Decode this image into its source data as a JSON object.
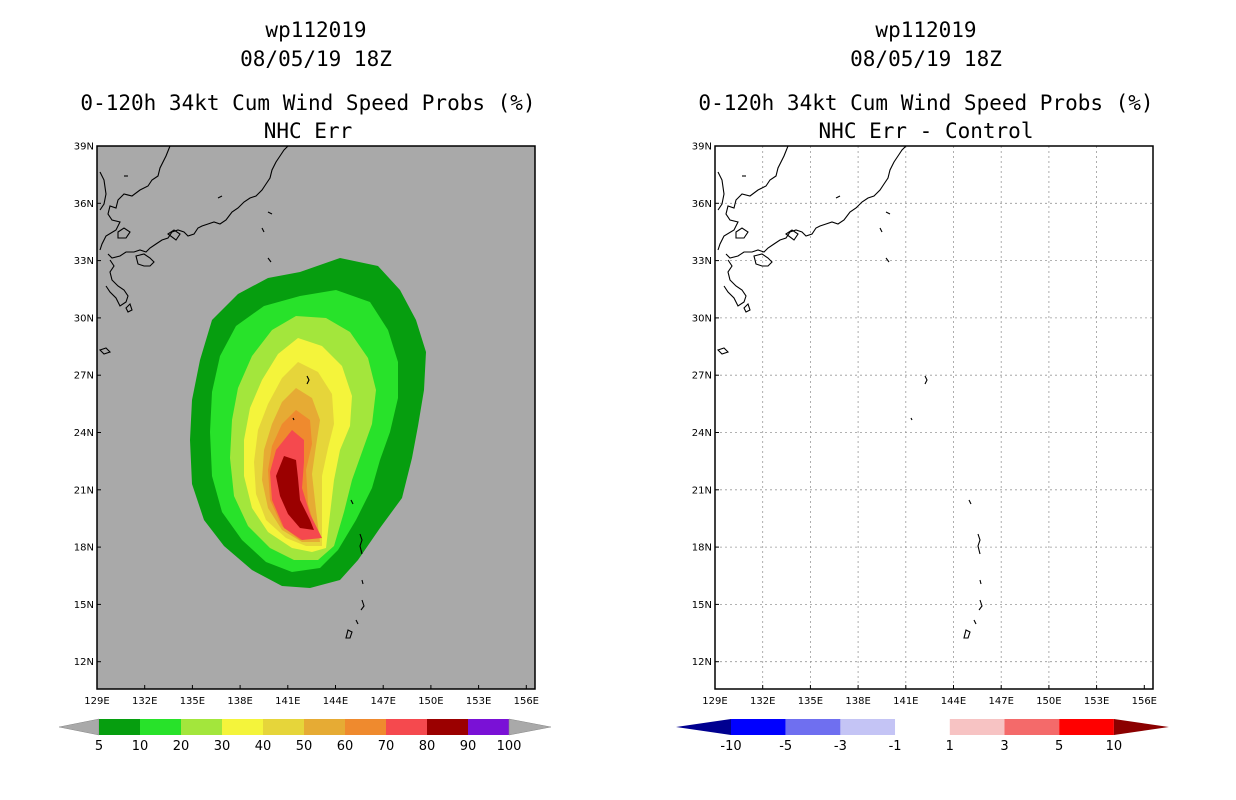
{
  "left_panel": {
    "title_line1": "wp112019",
    "title_line2": "08/05/19 18Z",
    "title_line3": "0-120h 34kt Cum Wind Speed Probs (%)",
    "title_line4": "NHC Err",
    "background_color": "#a9a9a9"
  },
  "right_panel": {
    "title_line1": "wp112019",
    "title_line2": "08/05/19 18Z",
    "title_line3": "0-120h 34kt Cum Wind Speed Probs (%)",
    "title_line4": "NHC Err - Control",
    "background_color": "#ffffff"
  },
  "axes": {
    "lat_labels": [
      "39N",
      "36N",
      "33N",
      "30N",
      "27N",
      "24N",
      "21N",
      "18N",
      "15N",
      "12N"
    ],
    "lon_labels": [
      "129E",
      "132E",
      "135E",
      "138E",
      "141E",
      "144E",
      "147E",
      "150E",
      "153E",
      "156E"
    ]
  },
  "left_colorbar": {
    "labels": [
      "5",
      "10",
      "20",
      "30",
      "40",
      "50",
      "60",
      "70",
      "80",
      "90",
      "100"
    ],
    "colors": [
      "#069e0f",
      "#28e22a",
      "#a3e63c",
      "#f4f43b",
      "#e6d53a",
      "#e6ab34",
      "#ef8a2e",
      "#f5494e",
      "#9b0000",
      "#7a11d6"
    ],
    "end_color": "#a9a9a9"
  },
  "right_colorbar": {
    "labels": [
      "-10",
      "-5",
      "-3",
      "-1",
      "1",
      "3",
      "5",
      "10"
    ],
    "colors": [
      "#0000ff",
      "#6f6ff0",
      "#c4c4f5",
      "#ffffff",
      "#f7c3c3",
      "#f46a6a",
      "#ff0000"
    ],
    "low_end_color": "#000090",
    "high_end_color": "#8b0000"
  },
  "probability_contours": {
    "levels": [
      "5",
      "10",
      "20",
      "30",
      "40",
      "50",
      "60",
      "70",
      "80"
    ]
  }
}
